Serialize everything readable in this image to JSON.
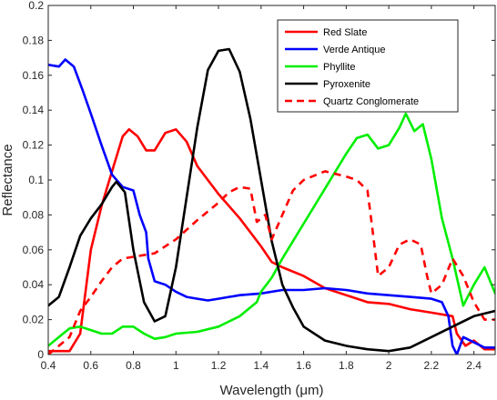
{
  "chart_data": {
    "type": "line",
    "title": "",
    "xlabel": "Wavelength (μm)",
    "ylabel": "Reflectance",
    "xlim": [
      0.4,
      2.5
    ],
    "ylim": [
      0,
      0.2
    ],
    "xticks": [
      "0.4",
      "0.6",
      "0.8",
      "1",
      "1.2",
      "1.4",
      "1.6",
      "1.8",
      "2",
      "2.2",
      "2.4"
    ],
    "yticks": [
      "0",
      "0.02",
      "0.04",
      "0.06",
      "0.08",
      "0.1",
      "0.12",
      "0.14",
      "0.16",
      "0.18",
      "0.2"
    ],
    "grid": false,
    "legend_position": "top-right",
    "series": [
      {
        "name": "Red Slate",
        "color": "#ff0000",
        "dash": "solid",
        "points": [
          [
            0.4,
            0.002
          ],
          [
            0.5,
            0.002
          ],
          [
            0.55,
            0.012
          ],
          [
            0.6,
            0.06
          ],
          [
            0.65,
            0.085
          ],
          [
            0.7,
            0.105
          ],
          [
            0.75,
            0.125
          ],
          [
            0.78,
            0.129
          ],
          [
            0.82,
            0.125
          ],
          [
            0.86,
            0.117
          ],
          [
            0.9,
            0.117
          ],
          [
            0.95,
            0.127
          ],
          [
            1.0,
            0.129
          ],
          [
            1.05,
            0.122
          ],
          [
            1.1,
            0.108
          ],
          [
            1.2,
            0.092
          ],
          [
            1.3,
            0.078
          ],
          [
            1.4,
            0.062
          ],
          [
            1.45,
            0.053
          ],
          [
            1.5,
            0.05
          ],
          [
            1.6,
            0.045
          ],
          [
            1.7,
            0.038
          ],
          [
            1.8,
            0.034
          ],
          [
            1.9,
            0.03
          ],
          [
            2.0,
            0.029
          ],
          [
            2.1,
            0.026
          ],
          [
            2.2,
            0.024
          ],
          [
            2.3,
            0.022
          ],
          [
            2.32,
            0.012
          ],
          [
            2.36,
            0.005
          ],
          [
            2.4,
            0.008
          ],
          [
            2.45,
            0.003
          ],
          [
            2.5,
            0.003
          ]
        ]
      },
      {
        "name": "Verde Antique",
        "color": "#0000ff",
        "dash": "solid",
        "points": [
          [
            0.4,
            0.166
          ],
          [
            0.45,
            0.165
          ],
          [
            0.48,
            0.169
          ],
          [
            0.52,
            0.165
          ],
          [
            0.56,
            0.152
          ],
          [
            0.6,
            0.138
          ],
          [
            0.65,
            0.12
          ],
          [
            0.7,
            0.103
          ],
          [
            0.75,
            0.096
          ],
          [
            0.8,
            0.094
          ],
          [
            0.83,
            0.08
          ],
          [
            0.86,
            0.07
          ],
          [
            0.87,
            0.055
          ],
          [
            0.9,
            0.042
          ],
          [
            0.95,
            0.04
          ],
          [
            1.0,
            0.036
          ],
          [
            1.05,
            0.033
          ],
          [
            1.1,
            0.032
          ],
          [
            1.15,
            0.031
          ],
          [
            1.2,
            0.032
          ],
          [
            1.3,
            0.034
          ],
          [
            1.4,
            0.035
          ],
          [
            1.5,
            0.037
          ],
          [
            1.6,
            0.037
          ],
          [
            1.7,
            0.038
          ],
          [
            1.8,
            0.037
          ],
          [
            1.9,
            0.035
          ],
          [
            2.0,
            0.034
          ],
          [
            2.1,
            0.033
          ],
          [
            2.2,
            0.032
          ],
          [
            2.25,
            0.03
          ],
          [
            2.28,
            0.022
          ],
          [
            2.3,
            0.005
          ],
          [
            2.32,
            0.0
          ],
          [
            2.35,
            0.01
          ],
          [
            2.4,
            0.007
          ],
          [
            2.45,
            0.004
          ],
          [
            2.5,
            0.004
          ]
        ]
      },
      {
        "name": "Phyllite",
        "color": "#00ee00",
        "dash": "solid",
        "points": [
          [
            0.4,
            0.005
          ],
          [
            0.45,
            0.01
          ],
          [
            0.5,
            0.015
          ],
          [
            0.55,
            0.016
          ],
          [
            0.6,
            0.014
          ],
          [
            0.65,
            0.012
          ],
          [
            0.7,
            0.012
          ],
          [
            0.75,
            0.016
          ],
          [
            0.8,
            0.016
          ],
          [
            0.85,
            0.012
          ],
          [
            0.9,
            0.009
          ],
          [
            0.95,
            0.01
          ],
          [
            1.0,
            0.012
          ],
          [
            1.1,
            0.013
          ],
          [
            1.2,
            0.016
          ],
          [
            1.3,
            0.022
          ],
          [
            1.38,
            0.03
          ],
          [
            1.4,
            0.036
          ],
          [
            1.45,
            0.044
          ],
          [
            1.5,
            0.055
          ],
          [
            1.6,
            0.075
          ],
          [
            1.7,
            0.095
          ],
          [
            1.8,
            0.115
          ],
          [
            1.85,
            0.124
          ],
          [
            1.9,
            0.126
          ],
          [
            1.95,
            0.118
          ],
          [
            2.0,
            0.12
          ],
          [
            2.05,
            0.13
          ],
          [
            2.08,
            0.138
          ],
          [
            2.12,
            0.128
          ],
          [
            2.16,
            0.132
          ],
          [
            2.2,
            0.112
          ],
          [
            2.25,
            0.078
          ],
          [
            2.3,
            0.055
          ],
          [
            2.35,
            0.028
          ],
          [
            2.4,
            0.04
          ],
          [
            2.45,
            0.05
          ],
          [
            2.5,
            0.035
          ]
        ]
      },
      {
        "name": "Pyroxenite",
        "color": "#000000",
        "dash": "solid",
        "points": [
          [
            0.4,
            0.028
          ],
          [
            0.45,
            0.033
          ],
          [
            0.5,
            0.05
          ],
          [
            0.55,
            0.068
          ],
          [
            0.6,
            0.078
          ],
          [
            0.65,
            0.086
          ],
          [
            0.7,
            0.096
          ],
          [
            0.72,
            0.099
          ],
          [
            0.76,
            0.093
          ],
          [
            0.8,
            0.06
          ],
          [
            0.85,
            0.03
          ],
          [
            0.9,
            0.019
          ],
          [
            0.95,
            0.022
          ],
          [
            1.0,
            0.05
          ],
          [
            1.05,
            0.09
          ],
          [
            1.1,
            0.13
          ],
          [
            1.15,
            0.163
          ],
          [
            1.2,
            0.174
          ],
          [
            1.25,
            0.175
          ],
          [
            1.3,
            0.162
          ],
          [
            1.35,
            0.135
          ],
          [
            1.4,
            0.1
          ],
          [
            1.45,
            0.065
          ],
          [
            1.5,
            0.04
          ],
          [
            1.55,
            0.027
          ],
          [
            1.6,
            0.016
          ],
          [
            1.7,
            0.008
          ],
          [
            1.8,
            0.005
          ],
          [
            1.9,
            0.003
          ],
          [
            2.0,
            0.002
          ],
          [
            2.1,
            0.004
          ],
          [
            2.2,
            0.01
          ],
          [
            2.3,
            0.016
          ],
          [
            2.4,
            0.022
          ],
          [
            2.5,
            0.025
          ]
        ]
      },
      {
        "name": "Quartz Conglomerate",
        "color": "#ff0000",
        "dash": "dashed",
        "points": [
          [
            0.4,
            0.0
          ],
          [
            0.5,
            0.01
          ],
          [
            0.55,
            0.025
          ],
          [
            0.6,
            0.033
          ],
          [
            0.65,
            0.042
          ],
          [
            0.7,
            0.05
          ],
          [
            0.75,
            0.055
          ],
          [
            0.8,
            0.056
          ],
          [
            0.9,
            0.058
          ],
          [
            1.0,
            0.066
          ],
          [
            1.1,
            0.077
          ],
          [
            1.2,
            0.087
          ],
          [
            1.25,
            0.093
          ],
          [
            1.3,
            0.096
          ],
          [
            1.35,
            0.095
          ],
          [
            1.38,
            0.076
          ],
          [
            1.42,
            0.08
          ],
          [
            1.45,
            0.066
          ],
          [
            1.5,
            0.08
          ],
          [
            1.55,
            0.094
          ],
          [
            1.6,
            0.1
          ],
          [
            1.7,
            0.105
          ],
          [
            1.8,
            0.102
          ],
          [
            1.85,
            0.1
          ],
          [
            1.9,
            0.094
          ],
          [
            1.92,
            0.075
          ],
          [
            1.95,
            0.045
          ],
          [
            2.0,
            0.05
          ],
          [
            2.05,
            0.063
          ],
          [
            2.1,
            0.066
          ],
          [
            2.15,
            0.063
          ],
          [
            2.18,
            0.045
          ],
          [
            2.2,
            0.035
          ],
          [
            2.25,
            0.04
          ],
          [
            2.3,
            0.055
          ],
          [
            2.35,
            0.045
          ],
          [
            2.4,
            0.03
          ],
          [
            2.45,
            0.02
          ],
          [
            2.5,
            0.02
          ]
        ]
      }
    ]
  }
}
